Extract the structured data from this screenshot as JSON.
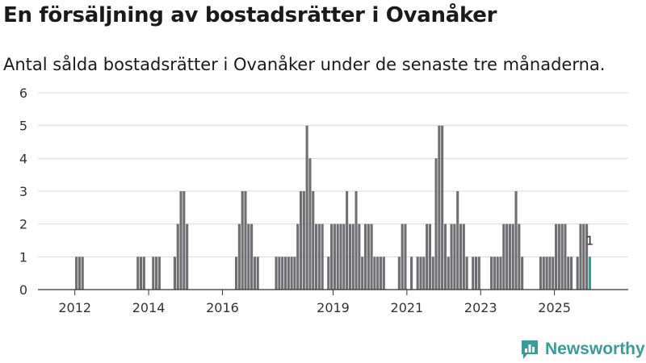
{
  "header": {
    "title": "En försäljning av bostadsrätter i Ovanåker",
    "subtitle": "Antal sålda bostadsrätter i Ovanåker under de senaste tre månaderna."
  },
  "brand": {
    "name": "Newsworthy",
    "color": "#3a9c98",
    "icon": "newsworthy-logo-icon"
  },
  "colors": {
    "bar": "#6f6e73",
    "highlight": "#21a39a",
    "grid": "#d9d9d9",
    "axis": "#333333"
  },
  "chart_data": {
    "type": "bar",
    "title": "En försäljning av bostadsrätter i Ovanåker",
    "subtitle": "Antal sålda bostadsrätter i Ovanåker under de senaste tre månaderna.",
    "xlabel": "",
    "ylabel": "",
    "ylim": [
      0,
      6
    ],
    "yticks": [
      0,
      1,
      2,
      3,
      4,
      5,
      6
    ],
    "grid": true,
    "x_start": "2011-01",
    "x_end": "2026-12",
    "x_ticks": [
      {
        "label": "2012",
        "month": "2012-01"
      },
      {
        "label": "2014",
        "month": "2014-01"
      },
      {
        "label": "2016",
        "month": "2016-01"
      },
      {
        "label": "2019",
        "month": "2019-01"
      },
      {
        "label": "2021",
        "month": "2021-01"
      },
      {
        "label": "2023",
        "month": "2023-01"
      },
      {
        "label": "2025",
        "month": "2025-01"
      }
    ],
    "start_month": "2012-01",
    "values": [
      1,
      1,
      1,
      0,
      0,
      0,
      0,
      0,
      0,
      0,
      0,
      0,
      0,
      0,
      0,
      0,
      0,
      0,
      0,
      0,
      1,
      1,
      1,
      0,
      0,
      1,
      1,
      1,
      0,
      0,
      0,
      0,
      1,
      2,
      3,
      3,
      2,
      0,
      0,
      0,
      0,
      0,
      0,
      0,
      0,
      0,
      0,
      0,
      0,
      0,
      0,
      0,
      1,
      2,
      3,
      3,
      2,
      2,
      1,
      1,
      0,
      0,
      0,
      0,
      0,
      1,
      1,
      1,
      1,
      1,
      1,
      1,
      2,
      3,
      3,
      5,
      4,
      3,
      2,
      2,
      2,
      0,
      1,
      2,
      2,
      2,
      2,
      2,
      3,
      2,
      2,
      3,
      2,
      1,
      2,
      2,
      2,
      1,
      1,
      1,
      1,
      0,
      0,
      0,
      0,
      1,
      2,
      2,
      0,
      1,
      0,
      1,
      1,
      1,
      2,
      2,
      1,
      4,
      5,
      5,
      2,
      1,
      2,
      2,
      3,
      2,
      2,
      1,
      0,
      1,
      1,
      1,
      0,
      0,
      0,
      1,
      1,
      1,
      1,
      2,
      2,
      2,
      2,
      3,
      2,
      1,
      0,
      0,
      0,
      0,
      0,
      1,
      1,
      1,
      1,
      1,
      2,
      2,
      2,
      2,
      1,
      1,
      0,
      1,
      2,
      2,
      2,
      1
    ],
    "highlight_last": true,
    "last_label": "1"
  }
}
